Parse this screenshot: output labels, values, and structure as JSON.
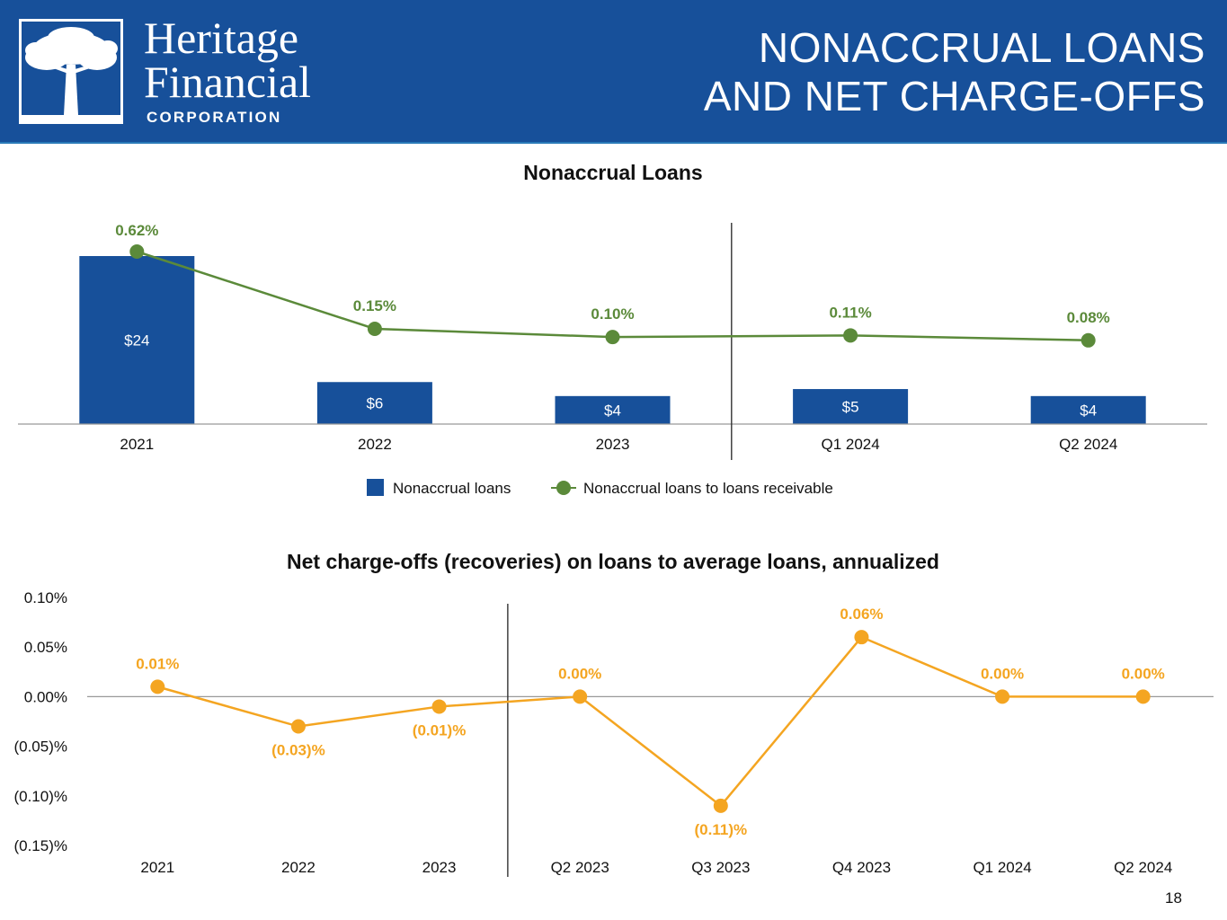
{
  "header": {
    "brand_line1": "Heritage",
    "brand_line2": "Financial",
    "brand_line3": "CORPORATION",
    "title_line1": "NONACCRUAL LOANS",
    "title_line2": "AND NET CHARGE-OFFS",
    "logo_icon": "tree-icon"
  },
  "colors": {
    "header_bg": "#17509a",
    "bar": "#17509a",
    "ratio_line": "#5b8a3a",
    "nco_line": "#f4a521"
  },
  "chart_data": [
    {
      "type": "bar",
      "title": "Nonaccrual Loans",
      "categories": [
        "2021",
        "2022",
        "2023",
        "Q1 2024",
        "Q2 2024"
      ],
      "series": [
        {
          "name": "Nonaccrual loans",
          "kind": "bar",
          "values": [
            24,
            6,
            4,
            5,
            4
          ],
          "labels": [
            "$24",
            "$6",
            "$4",
            "$5",
            "$4"
          ]
        },
        {
          "name": "Nonaccrual loans to loans receivable",
          "kind": "line",
          "values": [
            0.62,
            0.15,
            0.1,
            0.11,
            0.08
          ],
          "labels": [
            "0.62%",
            "0.15%",
            "0.10%",
            "0.11%",
            "0.08%"
          ]
        }
      ],
      "divider_after_index": 2,
      "legend": [
        "Nonaccrual loans",
        "Nonaccrual loans to loans receivable"
      ],
      "legend_position": "bottom"
    },
    {
      "type": "line",
      "title": "Net charge-offs (recoveries) on loans to average loans, annualized",
      "categories": [
        "2021",
        "2022",
        "2023",
        "Q2 2023",
        "Q3 2023",
        "Q4 2023",
        "Q1 2024",
        "Q2 2024"
      ],
      "values": [
        0.01,
        -0.03,
        -0.01,
        0.0,
        -0.11,
        0.06,
        0.0,
        0.0
      ],
      "labels": [
        "0.01%",
        "(0.03)%",
        "(0.01)%",
        "0.00%",
        "(0.11)%",
        "0.06%",
        "0.00%",
        "0.00%"
      ],
      "ylim": [
        -0.15,
        0.1
      ],
      "yticks": [
        0.1,
        0.05,
        0.0,
        -0.05,
        -0.1,
        -0.15
      ],
      "ytick_labels": [
        "0.10%",
        "0.05%",
        "0.00%",
        "(0.05)%",
        "(0.10)%",
        "(0.15)%"
      ],
      "divider_after_index": 2
    }
  ],
  "footer": {
    "page_number": "18"
  }
}
